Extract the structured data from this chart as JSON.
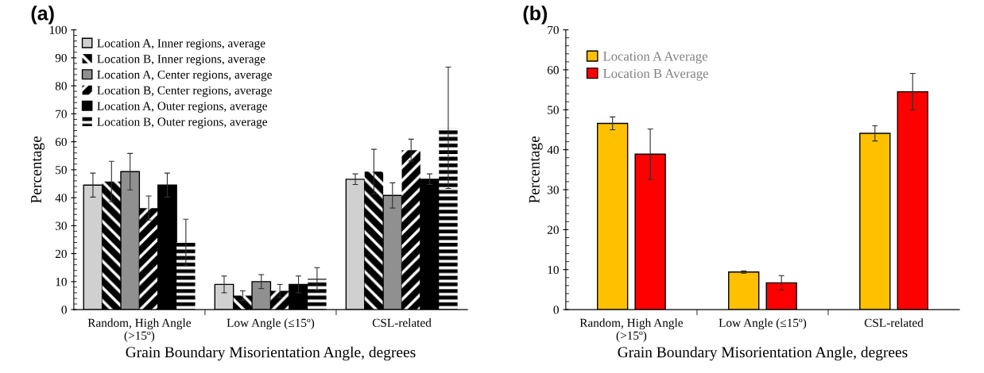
{
  "chart_data": [
    {
      "type": "bar",
      "title": "(a)",
      "xlabel": "Grain Boundary Misorientation Angle, degrees",
      "ylabel": "Percentage",
      "categories": [
        "Random, High Angle\n(>15º)",
        "Low Angle (≤15º)",
        "CSL-related"
      ],
      "series": [
        {
          "name": "Location A, Inner regions, average",
          "color": "#d0d0d0",
          "values": [
            44.5,
            9,
            46.6
          ],
          "errors": [
            4.3,
            3,
            1.9
          ]
        },
        {
          "name": "Location B, Inner regions, average",
          "color": "#000000",
          "values": [
            45.8,
            5,
            49.3
          ],
          "errors": [
            7.2,
            1.7,
            8
          ]
        },
        {
          "name": "Location A, Center regions, average",
          "color": "#909090",
          "values": [
            49.3,
            10,
            40.8
          ],
          "errors": [
            6.5,
            2.5,
            4.5
          ]
        },
        {
          "name": "Location B, Center regions, average",
          "color": "#000000",
          "values": [
            36.3,
            6.7,
            57
          ],
          "errors": [
            4.3,
            2.3,
            3.9
          ]
        },
        {
          "name": "Location A, Outer regions, average",
          "color": "#000000",
          "values": [
            44.5,
            9,
            46.6
          ],
          "errors": [
            4.3,
            3,
            1.9
          ]
        },
        {
          "name": "Location B, Outer regions, average",
          "color": "#000000",
          "values": [
            24,
            11,
            65
          ],
          "errors": [
            8.3,
            4,
            21.7
          ]
        }
      ],
      "ylim": [
        0,
        100
      ],
      "yticks": [
        0,
        10,
        20,
        30,
        40,
        50,
        60,
        70,
        80,
        90,
        100
      ],
      "grid": false,
      "legend": "top left"
    },
    {
      "type": "bar",
      "title": "(b)",
      "xlabel": "Grain Boundary Misorientation Angle, degrees",
      "ylabel": "Percentage",
      "categories": [
        "Random, High Angle\n(>15º)",
        "Low Angle (≤15º)",
        "CSL-related"
      ],
      "series": [
        {
          "name": "Location A Average",
          "color": "#ffc000",
          "values": [
            46.6,
            9.4,
            44.1
          ],
          "errors": [
            1.6,
            0.3,
            1.9
          ]
        },
        {
          "name": "Location B Average",
          "color": "#ff0000",
          "values": [
            38.9,
            6.7,
            54.5
          ],
          "errors": [
            6.3,
            1.8,
            4.6
          ]
        }
      ],
      "ylim": [
        0,
        70
      ],
      "yticks": [
        0,
        10,
        20,
        30,
        40,
        50,
        60,
        70
      ],
      "grid": false,
      "legend": "top left"
    }
  ]
}
